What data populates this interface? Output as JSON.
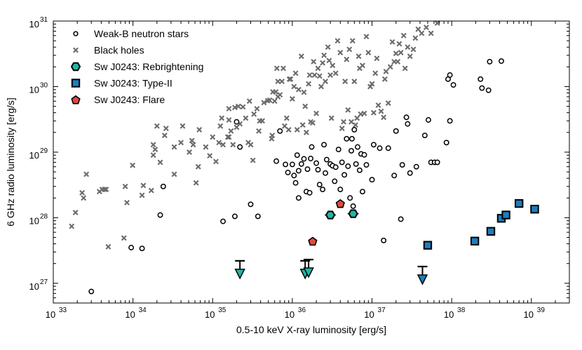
{
  "chart_data": {
    "type": "scatter",
    "title": "",
    "xlabel": "0.5-10 keV X-ray luminosity [erg/s]",
    "ylabel": "6 GHz radio luminosity [erg/s]",
    "xscale": "log",
    "yscale": "log",
    "xlim": [
      1e+33,
      3e+39
    ],
    "ylim": [
      5e+26,
      1e+31
    ],
    "x_tick_exponents": [
      33,
      34,
      35,
      36,
      37,
      38,
      39
    ],
    "y_tick_exponents": [
      27,
      28,
      29,
      30,
      31
    ],
    "tick_base": "10",
    "legend_position": "top-left",
    "colors": {
      "black_holes": "#6b6b6b",
      "teal": "#1fb5a8",
      "blue": "#1a7fc0",
      "red": "#e04a3f",
      "edge": "#000000"
    },
    "series": [
      {
        "name": "Weak-B neutron stars",
        "marker": "open-circle",
        "points": [
          [
            3e+33,
            7.5e+26
          ],
          [
            9.5e+33,
            3.5e+27
          ],
          [
            1.3e+34,
            3.4e+27
          ],
          [
            2.2e+34,
            1.1e+28
          ],
          [
            2.4e+34,
            3e+28
          ],
          [
            1.35e+35,
            8.8e+27
          ],
          [
            1.9e+35,
            1.05e+28
          ],
          [
            2e+35,
            2.9e+29
          ],
          [
            2.2e+35,
            1.2e+29
          ],
          [
            3e+35,
            1.6e+28
          ],
          [
            3.7e+35,
            1.05e+28
          ],
          [
            6.3e+35,
            7.3e+28
          ],
          [
            7e+35,
            2.1e+29
          ],
          [
            8.2e+35,
            6.5e+28
          ],
          [
            8.8e+35,
            4.9e+28
          ],
          [
            1e+36,
            6.5e+28
          ],
          [
            1.05e+36,
            4.4e+28
          ],
          [
            1.1e+36,
            3.4e+28
          ],
          [
            1.15e+36,
            9e+28
          ],
          [
            1.2e+36,
            2e+28
          ],
          [
            1.2e+36,
            5.2e+28
          ],
          [
            1.3e+36,
            6.6e+28
          ],
          [
            1.4e+36,
            7.9e+28
          ],
          [
            1.5e+36,
            2.5e+28
          ],
          [
            1.55e+36,
            5.5e+28
          ],
          [
            1.65e+36,
            2.4e+28
          ],
          [
            1.7e+36,
            8e+28
          ],
          [
            1.75e+36,
            1.2e+29
          ],
          [
            2e+36,
            6.8e+28
          ],
          [
            2.1e+36,
            5.4e+28
          ],
          [
            2.2e+36,
            3.2e+28
          ],
          [
            2.4e+36,
            2.7e+28
          ],
          [
            2.5e+36,
            1.3e+29
          ],
          [
            2.6e+36,
            4.8e+28
          ],
          [
            2.7e+36,
            7.7e+28
          ],
          [
            2.9e+36,
            1.05e+28
          ],
          [
            3e+36,
            6.6e+28
          ],
          [
            3.2e+36,
            6.2e+28
          ],
          [
            3.4e+36,
            3.6e+28
          ],
          [
            3.5e+36,
            5.9e+28
          ],
          [
            3.8e+36,
            1.1e+29
          ],
          [
            4e+36,
            2.7e+28
          ],
          [
            4.2e+36,
            7e+28
          ],
          [
            4.5e+36,
            4.5e+28
          ],
          [
            4.8e+36,
            1.6e+29
          ],
          [
            5e+36,
            6.1e+28
          ],
          [
            5.3e+36,
            2e+28
          ],
          [
            5.5e+36,
            1.05e+29
          ],
          [
            5.6e+36,
            1.6e+29
          ],
          [
            5.8e+36,
            1.5e+28
          ],
          [
            6e+36,
            2.2e+29
          ],
          [
            6.3e+36,
            6.6e+28
          ],
          [
            6.6e+36,
            1.2e+29
          ],
          [
            7e+36,
            5.3e+28
          ],
          [
            7.3e+36,
            9.4e+28
          ],
          [
            7.6e+36,
            2.5e+28
          ],
          [
            8e+36,
            9.1e+28
          ],
          [
            8.5e+36,
            6.4e+28
          ],
          [
            1e+37,
            3.8e+28
          ],
          [
            1.05e+37,
            1.3e+29
          ],
          [
            1.25e+37,
            1.15e+29
          ],
          [
            1.6e+37,
            1.15e+29
          ],
          [
            1.9e+37,
            4.4e+28
          ],
          [
            2.3e+37,
            9.5e+27
          ],
          [
            2.4e+37,
            6.4e+28
          ],
          [
            2.7e+37,
            3.4e+29
          ],
          [
            2.8e+37,
            2.7e+29
          ],
          [
            2e+37,
            2.1e+29
          ],
          [
            3e+37,
            4.8e+28
          ],
          [
            3.6e+37,
            6e+28
          ],
          [
            4.6e+37,
            1.8e+29
          ],
          [
            5.1e+37,
            3.1e+29
          ],
          [
            5.5e+37,
            7e+28
          ],
          [
            6.1e+37,
            7e+28
          ],
          [
            6.6e+37,
            7e+28
          ],
          [
            8.6e+37,
            1.4e+29
          ],
          [
            9e+37,
            1.3e+30
          ],
          [
            9.5e+37,
            3e+29
          ],
          [
            9.5e+37,
            1.5e+30
          ],
          [
            1.05e+38,
            1.06e+30
          ],
          [
            2.3e+38,
            1.3e+30
          ],
          [
            2.4e+38,
            9.5e+29
          ],
          [
            2.9e+38,
            8.8e+29
          ],
          [
            3e+38,
            2.4e+30
          ],
          [
            4.2e+38,
            2.45e+30
          ],
          [
            1.4e+37,
            4.5e+27
          ]
        ]
      },
      {
        "name": "Black holes",
        "marker": "x",
        "points": [
          [
            1.7e+33,
            7.4e+27
          ],
          [
            1.9e+33,
            1.2e+28
          ],
          [
            2.3e+33,
            2.4e+28
          ],
          [
            2.4e+33,
            2e+28
          ],
          [
            2.6e+33,
            4.6e+28
          ],
          [
            3.8e+33,
            2.5e+28
          ],
          [
            4.1e+33,
            2.7e+28
          ],
          [
            4.4e+33,
            2.7e+28
          ],
          [
            4.6e+33,
            2.7e+28
          ],
          [
            4.9e+33,
            3.6e+27
          ],
          [
            7.7e+33,
            4.9e+27
          ],
          [
            8e+33,
            3e+28
          ],
          [
            8.4e+33,
            1.7e+28
          ],
          [
            9.9e+33,
            6.3e+28
          ],
          [
            1.3e+34,
            2.2e+28
          ],
          [
            1.35e+34,
            3.1e+28
          ],
          [
            1.7e+34,
            2.6e+28
          ],
          [
            1.8e+34,
            9e+28
          ],
          [
            1.8e+34,
            1.3e+29
          ],
          [
            1.9e+34,
            1.1e+29
          ],
          [
            2e+34,
            2.5e+29
          ],
          [
            2.2e+34,
            7e+28
          ],
          [
            2.5e+34,
            1.8e+29
          ],
          [
            2.6e+34,
            2.3e+29
          ],
          [
            3.3e+34,
            4.6e+28
          ],
          [
            3.3e+34,
            1.2e+29
          ],
          [
            4e+34,
            1.4e+29
          ],
          [
            4.2e+34,
            2.5e+29
          ],
          [
            5.1e+34,
            1e+29
          ],
          [
            5.5e+34,
            1.5e+29
          ],
          [
            5.7e+34,
            1.3e+29
          ],
          [
            6.2e+34,
            3.4e+28
          ],
          [
            6.6e+34,
            6e+28
          ],
          [
            6.8e+34,
            2.2e+29
          ],
          [
            8.2e+34,
            1.2e+29
          ],
          [
            9.2e+34,
            8.8e+28
          ],
          [
            1e+35,
            1.7e+29
          ],
          [
            1.1e+35,
            7.2e+28
          ],
          [
            1.2e+35,
            1.4e+29
          ],
          [
            1.25e+35,
            2.5e+29
          ],
          [
            1.3e+35,
            3.3e+29
          ],
          [
            1.35e+35,
            1.3e+29
          ],
          [
            1.55e+35,
            1.7e+29
          ],
          [
            1.6e+35,
            1.7e+29
          ],
          [
            1.6e+35,
            3.1e+29
          ],
          [
            1.6e+35,
            4.6e+29
          ],
          [
            1.7e+35,
            2.1e+29
          ],
          [
            1.8e+35,
            1.3e+29
          ],
          [
            1.9e+35,
            4.8e+29
          ],
          [
            2e+35,
            2.4e+29
          ],
          [
            2.1e+35,
            5e+29
          ],
          [
            2.2e+35,
            2.7e+29
          ],
          [
            2.4e+35,
            4.9e+29
          ],
          [
            2.6e+35,
            3.3e+29
          ],
          [
            2.8e+35,
            1.4e+29
          ],
          [
            2.9e+35,
            6e+29
          ],
          [
            3e+35,
            1.3e+29
          ],
          [
            3.2e+35,
            7.5e+28
          ],
          [
            3.3e+35,
            3.8e+29
          ],
          [
            3.6e+35,
            4.6e+29
          ],
          [
            3.8e+35,
            2.1e+29
          ],
          [
            3.9e+35,
            3e+29
          ],
          [
            4.2e+35,
            3e+29
          ],
          [
            4.4e+35,
            5.7e+29
          ],
          [
            4.9e+35,
            6.1e+29
          ],
          [
            5.2e+35,
            6.2e+29
          ],
          [
            5.5e+35,
            1.6e+29
          ],
          [
            5.6e+35,
            1.8e+29
          ],
          [
            5.7e+35,
            8.3e+29
          ],
          [
            6e+35,
            6e+29
          ],
          [
            6.2e+35,
            8.3e+29
          ],
          [
            6.4e+35,
            1.9e+30
          ],
          [
            6.6e+35,
            7e+29
          ],
          [
            6.6e+35,
            1.2e+30
          ],
          [
            7e+35,
            7.5e+29
          ],
          [
            7.4e+35,
            1.2e+30
          ],
          [
            7.7e+35,
            1.9e+30
          ],
          [
            8e+35,
            2.5e+29
          ],
          [
            8.5e+35,
            3.3e+29
          ],
          [
            9e+35,
            2.2e+29
          ],
          [
            9.2e+35,
            1.3e+30
          ],
          [
            9.5e+35,
            1.3e+30
          ],
          [
            1e+36,
            6.5e+29
          ],
          [
            1.05e+36,
            1e+30
          ],
          [
            1.1e+36,
            1.6e+30
          ],
          [
            1.15e+36,
            2.2e+29
          ],
          [
            1.2e+36,
            9e+29
          ],
          [
            1.3e+36,
            2.9e+30
          ],
          [
            1.35e+36,
            2.6e+29
          ],
          [
            1.4e+36,
            8.2e+29
          ],
          [
            1.45e+36,
            5e+29
          ],
          [
            1.5e+36,
            2e+29
          ],
          [
            1.6e+36,
            1.1e+30
          ],
          [
            1.65e+36,
            1.5e+30
          ],
          [
            1.7e+36,
            2.9e+29
          ],
          [
            1.8e+36,
            2.8e+29
          ],
          [
            1.85e+36,
            2.4e+30
          ],
          [
            1.9e+36,
            1.5e+30
          ],
          [
            2e+36,
            3.9e+29
          ],
          [
            2.1e+36,
            1.9e+30
          ],
          [
            2.2e+36,
            1.45e+30
          ],
          [
            2.3e+36,
            1e+30
          ],
          [
            2.4e+36,
            2.3e+30
          ],
          [
            2.5e+36,
            3e+30
          ],
          [
            2.6e+36,
            1.2e+30
          ],
          [
            2.8e+36,
            4e+30
          ],
          [
            2.9e+36,
            2.5e+30
          ],
          [
            3e+36,
            1.5e+30
          ],
          [
            3.1e+36,
            3.3e+29
          ],
          [
            3.2e+36,
            2.1e+30
          ],
          [
            3.5e+36,
            1.6e+30
          ],
          [
            3.7e+36,
            5e+30
          ],
          [
            4e+36,
            3.3e+30
          ],
          [
            4.2e+36,
            2.3e+29
          ],
          [
            4.4e+36,
            2.9e+29
          ],
          [
            4.6e+36,
            1.2e+30
          ],
          [
            4.8e+36,
            2.6e+30
          ],
          [
            5e+36,
            4.4e+29
          ],
          [
            5.2e+36,
            3.7e+30
          ],
          [
            5.5e+36,
            2.9e+29
          ],
          [
            5.7e+36,
            5e+30
          ],
          [
            6e+36,
            1.2e+30
          ],
          [
            6.2e+36,
            2.6e+29
          ],
          [
            6.5e+36,
            3.3e+29
          ],
          [
            6.8e+36,
            2.9e+30
          ],
          [
            7e+36,
            1.9e+30
          ],
          [
            7.2e+36,
            3.8e+29
          ],
          [
            7.6e+36,
            2.1e+30
          ],
          [
            8e+36,
            3.9e+29
          ],
          [
            8.5e+36,
            5.8e+30
          ],
          [
            9e+36,
            3.3e+30
          ],
          [
            9.5e+36,
            1e+30
          ],
          [
            1e+37,
            1.1e+30
          ],
          [
            1.05e+37,
            4e+29
          ],
          [
            1.1e+37,
            1.6e+30
          ],
          [
            1.15e+37,
            2.7e+30
          ],
          [
            1.2e+37,
            5.2e+29
          ],
          [
            1.3e+37,
            4.2e+29
          ],
          [
            1.4e+37,
            3.4e+29
          ],
          [
            1.45e+37,
            1.3e+30
          ],
          [
            1.5e+37,
            1.7e+30
          ],
          [
            1.6e+37,
            5.6e+29
          ],
          [
            1.7e+37,
            2e+30
          ],
          [
            1.8e+37,
            4.8e+30
          ],
          [
            1.9e+37,
            2.4e+30
          ],
          [
            2e+37,
            3.2e+30
          ],
          [
            2.1e+37,
            2.4e+30
          ],
          [
            2.2e+37,
            4.5e+30
          ],
          [
            2.3e+37,
            3.3e+30
          ],
          [
            2.5e+37,
            6e+30
          ],
          [
            2.6e+37,
            1.9e+30
          ],
          [
            2.8e+37,
            4e+30
          ],
          [
            3e+37,
            2.9e+30
          ],
          [
            3.3e+37,
            3.7e+30
          ],
          [
            3.5e+37,
            5.5e+30
          ],
          [
            3.8e+37,
            7.5e+30
          ],
          [
            4.2e+37,
            6.5e+30
          ],
          [
            4.8e+37,
            8e+30
          ],
          [
            5.5e+37,
            6.5e+30
          ],
          [
            6.6e+37,
            9.3e+30
          ]
        ]
      },
      {
        "name": "Sw J0243: Rebrightening",
        "marker": "hexagon",
        "points": [
          [
            3e+36,
            1.1e+28
          ],
          [
            5.8e+36,
            1.15e+28
          ]
        ],
        "upper_limits": [
          [
            2.2e+35,
            2.2e+27
          ],
          [
            1.45e+36,
            2.2e+27
          ],
          [
            1.6e+36,
            2.3e+27
          ]
        ]
      },
      {
        "name": "Sw J0243: Type-II",
        "marker": "square",
        "points": [
          [
            5e+37,
            3.8e+27
          ],
          [
            1.95e+38,
            4.4e+27
          ],
          [
            3.1e+38,
            6.2e+27
          ],
          [
            4.2e+38,
            9.8e+27
          ],
          [
            4.8e+38,
            1.1e+28
          ],
          [
            7e+38,
            1.65e+28
          ],
          [
            1.1e+39,
            1.35e+28
          ]
        ],
        "upper_limits": [
          [
            4.3e+37,
            1.8e+27
          ]
        ]
      },
      {
        "name": "Sw J0243: Flare",
        "marker": "pentagon",
        "points": [
          [
            1.8e+36,
            4.4e+27
          ],
          [
            4e+36,
            1.65e+28
          ]
        ]
      }
    ]
  }
}
